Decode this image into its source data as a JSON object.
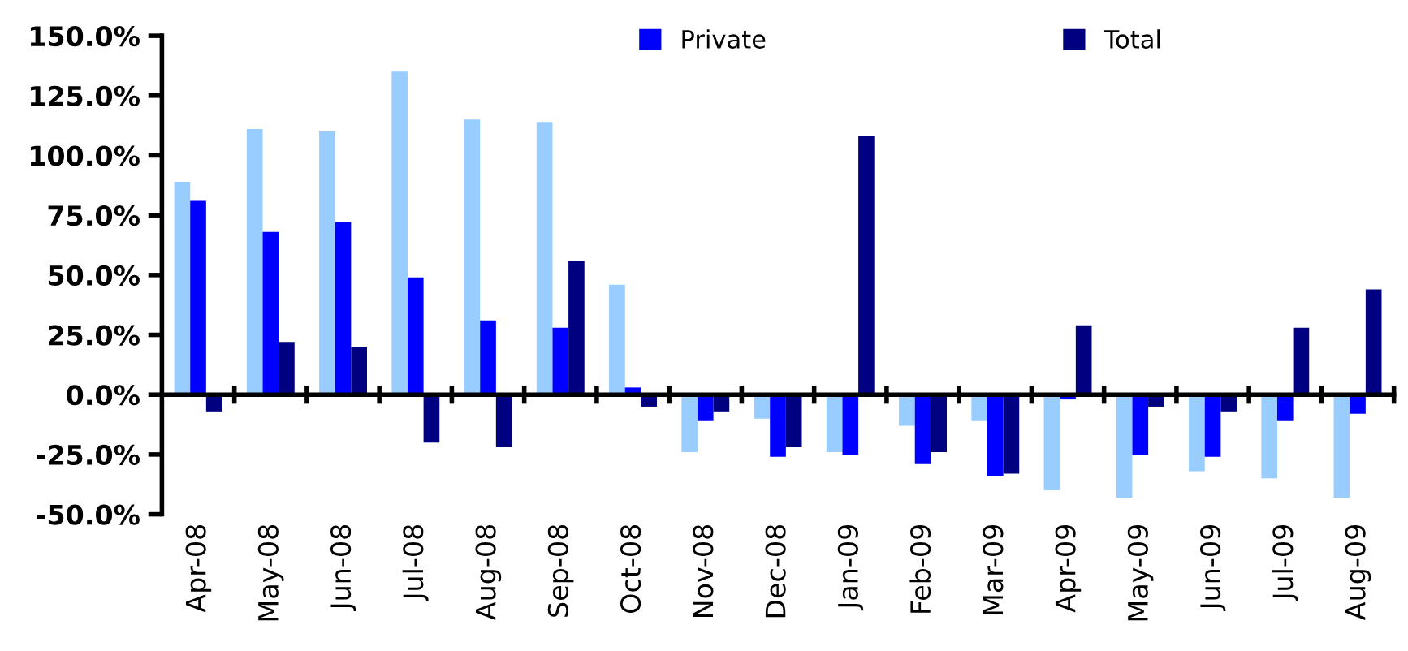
{
  "chart_data": {
    "type": "bar",
    "categories": [
      "Apr-08",
      "May-08",
      "Jun-08",
      "Jul-08",
      "Aug-08",
      "Sep-08",
      "Oct-08",
      "Nov-08",
      "Dec-08",
      "Jan-09",
      "Feb-09",
      "Mar-09",
      "Apr-09",
      "May-09",
      "Jun-09",
      "Jul-09",
      "Aug-09"
    ],
    "series": [
      {
        "color": "#99ccff",
        "values": [
          89,
          111,
          110,
          135,
          115,
          114,
          46,
          -24,
          -10,
          -24,
          -13,
          -11,
          -40,
          -43,
          -32,
          -35,
          -43
        ]
      },
      {
        "name": "Private",
        "color": "#0000ff",
        "values": [
          81,
          68,
          72,
          49,
          31,
          28,
          3,
          -11,
          -26,
          -25,
          -29,
          -34,
          -2,
          -25,
          -26,
          -11,
          -8
        ]
      },
      {
        "name": "Total",
        "color": "#000080",
        "values": [
          -7,
          22,
          20,
          -20,
          -22,
          56,
          -5,
          -7,
          -22,
          108,
          -24,
          -33,
          29,
          -5,
          -7,
          28,
          44
        ]
      }
    ],
    "ylim": [
      -50,
      150
    ],
    "yticks": [
      {
        "value": -50,
        "label": "-50.0%"
      },
      {
        "value": -25,
        "label": "-25.0%"
      },
      {
        "value": 0,
        "label": "0.0%"
      },
      {
        "value": 25,
        "label": "25.0%"
      },
      {
        "value": 50,
        "label": "50.0%"
      },
      {
        "value": 75,
        "label": "75.0%"
      },
      {
        "value": 100,
        "label": "100.0%"
      },
      {
        "value": 125,
        "label": "125.0%"
      },
      {
        "value": 150,
        "label": "150.0%"
      }
    ],
    "legend": "top"
  }
}
